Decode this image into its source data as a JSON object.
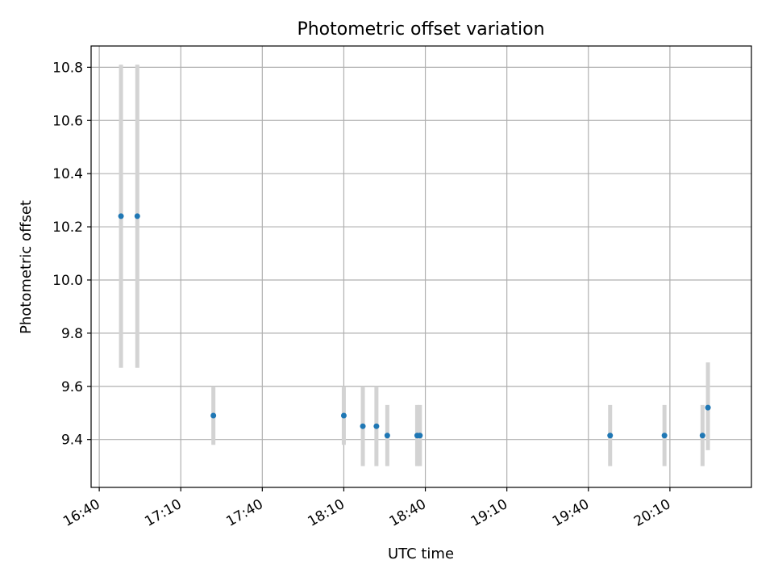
{
  "chart_data": {
    "type": "scatter",
    "title": "Photometric offset variation",
    "xlabel": "UTC time",
    "ylabel": "Photometric offset",
    "x_ticks": [
      "16:40",
      "17:10",
      "17:40",
      "18:10",
      "18:40",
      "19:10",
      "19:40",
      "20:10"
    ],
    "y_ticks": [
      "9.4",
      "9.6",
      "9.8",
      "10.0",
      "10.2",
      "10.4",
      "10.6",
      "10.8"
    ],
    "xlim": [
      "16:37",
      "20:40"
    ],
    "ylim": [
      9.22,
      10.88
    ],
    "grid": true,
    "errorbar_color": "#d3d3d3",
    "marker_color": "#1f77b4",
    "points": [
      {
        "time": "16:48",
        "y": 10.24,
        "ylo": 9.67,
        "yhi": 10.81
      },
      {
        "time": "16:54",
        "y": 10.24,
        "ylo": 9.67,
        "yhi": 10.81
      },
      {
        "time": "17:22",
        "y": 9.49,
        "ylo": 9.38,
        "yhi": 9.6
      },
      {
        "time": "18:10",
        "y": 9.49,
        "ylo": 9.38,
        "yhi": 9.6
      },
      {
        "time": "18:17",
        "y": 9.45,
        "ylo": 9.3,
        "yhi": 9.6
      },
      {
        "time": "18:22",
        "y": 9.45,
        "ylo": 9.3,
        "yhi": 9.6
      },
      {
        "time": "18:26",
        "y": 9.415,
        "ylo": 9.3,
        "yhi": 9.53
      },
      {
        "time": "18:37",
        "y": 9.415,
        "ylo": 9.3,
        "yhi": 9.53
      },
      {
        "time": "18:38",
        "y": 9.415,
        "ylo": 9.3,
        "yhi": 9.53
      },
      {
        "time": "19:48",
        "y": 9.415,
        "ylo": 9.3,
        "yhi": 9.53
      },
      {
        "time": "20:08",
        "y": 9.415,
        "ylo": 9.3,
        "yhi": 9.53
      },
      {
        "time": "20:22",
        "y": 9.415,
        "ylo": 9.3,
        "yhi": 9.53
      },
      {
        "time": "20:24",
        "y": 9.52,
        "ylo": 9.36,
        "yhi": 9.69
      }
    ]
  }
}
